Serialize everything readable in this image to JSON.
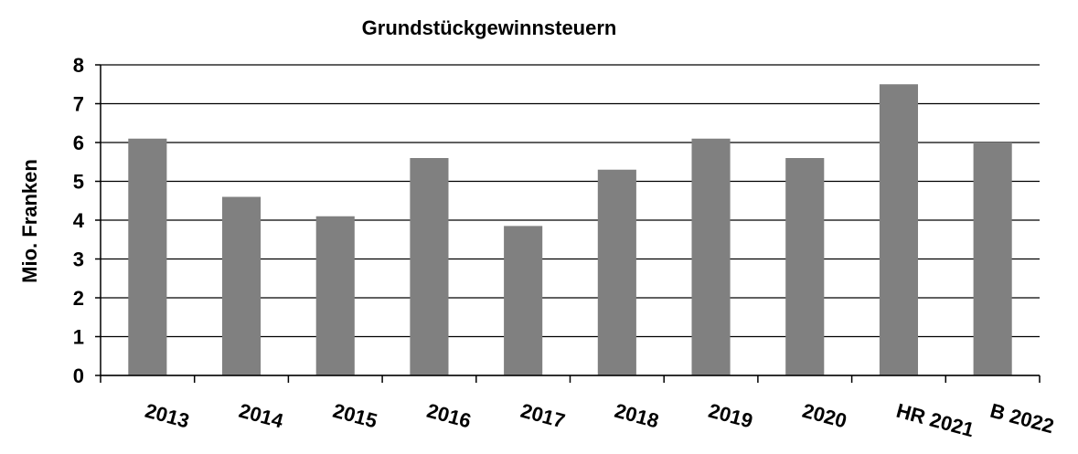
{
  "chart_data": {
    "type": "bar",
    "title": "Grundstückgewinnsteuern",
    "y_label": "Mio. Franken",
    "categories": [
      "2013",
      "2014",
      "2015",
      "2016",
      "2017",
      "2018",
      "2019",
      "2020",
      "HR 2021",
      "B 2022"
    ],
    "values": [
      6.1,
      4.6,
      4.1,
      5.6,
      3.85,
      5.3,
      6.1,
      5.6,
      7.5,
      6.0
    ],
    "color": "#808080",
    "ylim": [
      0,
      8
    ],
    "yticks": [
      0,
      1,
      2,
      3,
      4,
      5,
      6,
      7,
      8
    ],
    "grid": true
  }
}
